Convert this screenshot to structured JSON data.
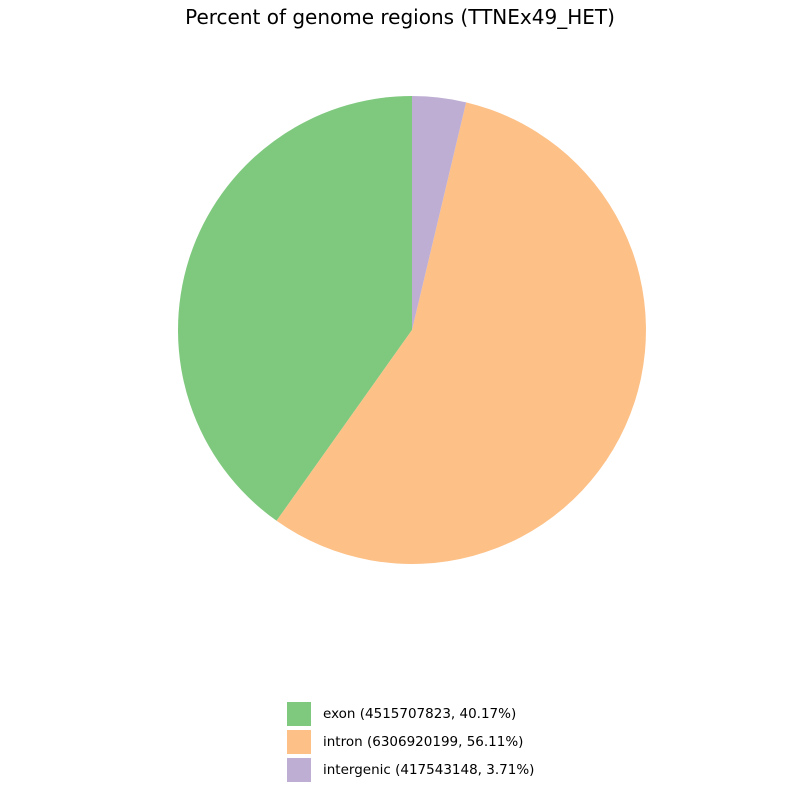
{
  "chart_data": {
    "type": "pie",
    "title": "Percent of genome regions (TTNEx49_HET)",
    "slices": [
      {
        "label": "exon",
        "value": 4515707823,
        "percent": 40.17,
        "color": "#7fc97f",
        "legend": "exon (4515707823, 40.17%)"
      },
      {
        "label": "intron",
        "value": 6306920199,
        "percent": 56.11,
        "color": "#fdc086",
        "legend": "intron (6306920199, 56.11%)"
      },
      {
        "label": "intergenic",
        "value": 417543148,
        "percent": 3.71,
        "color": "#beaed4",
        "legend": "intergenic (417543148, 3.71%)"
      }
    ],
    "start_angle": 90,
    "direction": "counterclockwise",
    "legend_placement": "bottom-center"
  }
}
